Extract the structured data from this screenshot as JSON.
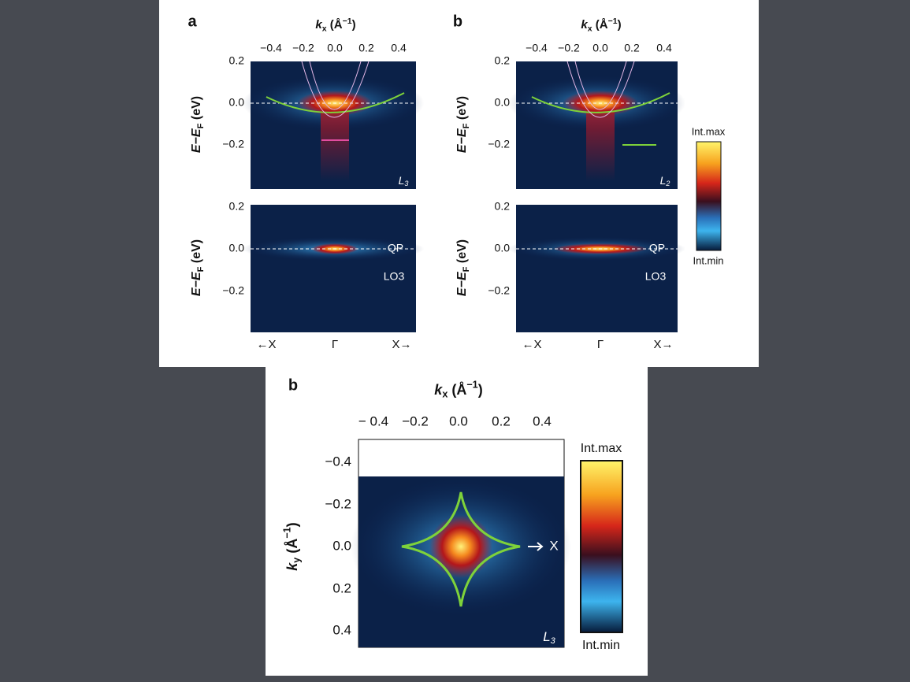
{
  "panels": [
    {
      "label": "a",
      "x_title": [
        "k",
        "x",
        " (Å",
        "−1",
        ")"
      ],
      "x_ticks": [
        "−0.4",
        "−0.2",
        "0.0",
        "0.2",
        "0.4"
      ],
      "y_title": [
        "E−E",
        "F",
        " (eV)"
      ],
      "top_y_ticks": [
        "0.2",
        "0.0",
        "−0.2"
      ],
      "top_tag": [
        "L",
        "3"
      ],
      "bottom_y_ticks": [
        "0.2",
        "0.0",
        "−0.2"
      ],
      "annotations": [
        "QP",
        "LO3"
      ],
      "bottom_x_labels": [
        "←X",
        "Γ",
        "X→"
      ]
    },
    {
      "label": "b",
      "x_title": [
        "k",
        "x",
        " (Å",
        "−1",
        ")"
      ],
      "x_ticks": [
        "−0.4",
        "−0.2",
        "0.0",
        "0.2",
        "0.4"
      ],
      "y_title": [
        "E−E",
        "F",
        " (eV)"
      ],
      "top_y_ticks": [
        "0.2",
        "0.0",
        "−0.2"
      ],
      "top_tag": [
        "L",
        "2"
      ],
      "bottom_y_ticks": [
        "0.2",
        "0.0",
        "−0.2"
      ],
      "annotations": [
        "QP",
        "LO3"
      ],
      "bottom_x_labels": [
        "←X",
        "Γ",
        "X→"
      ]
    }
  ],
  "colorbar_top": {
    "max": "Int.max",
    "min": "Int.min"
  },
  "map_panel": {
    "label": "b",
    "x_title": [
      "k",
      "x",
      " (Å",
      "−1",
      ")"
    ],
    "x_ticks": [
      "− 0.4",
      "−0.2",
      "0.0",
      "0.2",
      "0.4"
    ],
    "y_title": [
      "k",
      "y",
      " (Å",
      "−1",
      ")"
    ],
    "y_ticks": [
      "−0.4",
      "−0.2",
      "0.0",
      "0.2",
      "0.4"
    ],
    "arrow_label": "X",
    "tag": [
      "L",
      "3"
    ],
    "colorbar": {
      "max": "Int.max",
      "min": "Int.min"
    }
  }
}
